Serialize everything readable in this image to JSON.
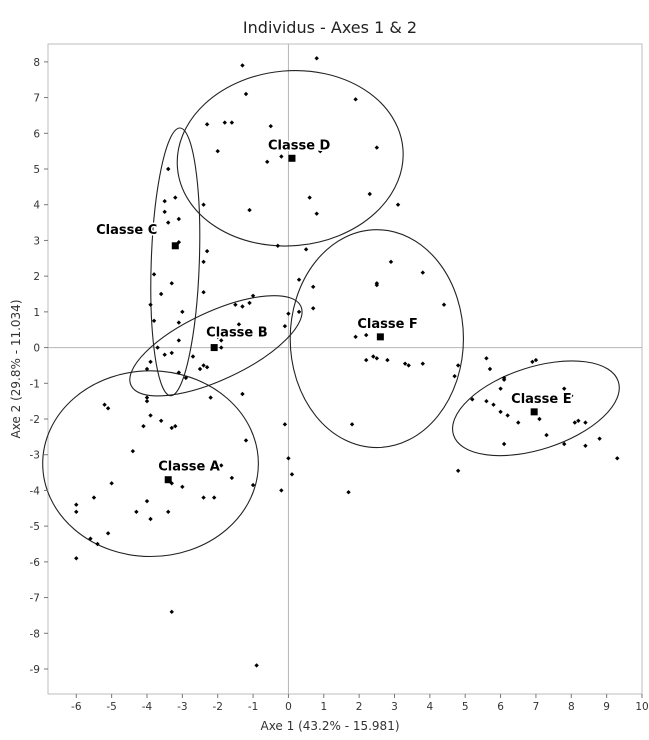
{
  "chart_data": {
    "type": "scatter",
    "title": "Individus - Axes 1 & 2",
    "xlabel": "Axe 1 (43.2% - 15.981)",
    "ylabel": "Axe 2 (29.8% - 11.034)",
    "xlim": [
      -6.8,
      10
    ],
    "ylim": [
      -9.7,
      8.5
    ],
    "x_ticks": [
      "-6",
      "-5",
      "-4",
      "-3",
      "-2",
      "-1",
      "0",
      "1",
      "2",
      "3",
      "4",
      "5",
      "6",
      "7",
      "8",
      "9",
      "10"
    ],
    "y_ticks": [
      "-9",
      "-8",
      "-7",
      "-6",
      "-5",
      "-4",
      "-3",
      "-2",
      "-1",
      "0",
      "1",
      "2",
      "3",
      "4",
      "5",
      "6",
      "7",
      "8"
    ],
    "reference_lines": {
      "x": 0,
      "y": 0
    },
    "grid": false,
    "legend": false,
    "points": [
      [
        -1.3,
        7.9
      ],
      [
        0.8,
        8.1
      ],
      [
        -1.2,
        7.1
      ],
      [
        1.9,
        6.95
      ],
      [
        -1.8,
        6.3
      ],
      [
        -2.3,
        6.25
      ],
      [
        -1.6,
        6.3
      ],
      [
        -0.5,
        6.2
      ],
      [
        -2.0,
        5.5
      ],
      [
        0.9,
        5.5
      ],
      [
        2.5,
        5.6
      ],
      [
        -0.2,
        5.35
      ],
      [
        -0.6,
        5.2
      ],
      [
        2.3,
        4.3
      ],
      [
        0.6,
        4.2
      ],
      [
        3.1,
        4.0
      ],
      [
        0.8,
        3.75
      ],
      [
        -1.1,
        3.85
      ],
      [
        -2.4,
        4.0
      ],
      [
        0.5,
        2.75
      ],
      [
        -0.3,
        2.85
      ],
      [
        -3.4,
        5.0
      ],
      [
        -3.5,
        4.1
      ],
      [
        -3.5,
        3.8
      ],
      [
        -3.4,
        3.5
      ],
      [
        -3.1,
        3.6
      ],
      [
        -3.2,
        4.2
      ],
      [
        -3.1,
        2.95
      ],
      [
        -2.3,
        2.7
      ],
      [
        -2.4,
        2.4
      ],
      [
        -3.8,
        2.05
      ],
      [
        -3.3,
        1.8
      ],
      [
        -3.6,
        1.5
      ],
      [
        -3.9,
        1.2
      ],
      [
        -2.4,
        1.55
      ],
      [
        -3.8,
        0.75
      ],
      [
        -3.0,
        1.0
      ],
      [
        -3.1,
        0.7
      ],
      [
        -3.1,
        0.2
      ],
      [
        -3.7,
        0.0
      ],
      [
        -3.5,
        -0.2
      ],
      [
        -3.3,
        -0.15
      ],
      [
        -2.9,
        -0.85
      ],
      [
        -3.1,
        -0.7
      ],
      [
        -2.7,
        -0.25
      ],
      [
        -2.4,
        -0.5
      ],
      [
        -2.5,
        -0.6
      ],
      [
        -2.3,
        -0.55
      ],
      [
        -3.9,
        -0.4
      ],
      [
        -4.0,
        -0.6
      ],
      [
        -4.0,
        -1.4
      ],
      [
        -4.0,
        -1.5
      ],
      [
        -3.9,
        -1.9
      ],
      [
        -4.1,
        -2.2
      ],
      [
        -3.6,
        -2.05
      ],
      [
        -2.2,
        -1.4
      ],
      [
        -1.3,
        -1.3
      ],
      [
        -1.6,
        0.5
      ],
      [
        -1.4,
        0.65
      ],
      [
        -1.3,
        1.15
      ],
      [
        -1.1,
        1.25
      ],
      [
        -1.0,
        1.45
      ],
      [
        -1.5,
        1.2
      ],
      [
        -1.9,
        0.2
      ],
      [
        -2.0,
        0.3
      ],
      [
        -1.9,
        0.0
      ],
      [
        -0.1,
        0.6
      ],
      [
        0.0,
        0.95
      ],
      [
        0.3,
        1.0
      ],
      [
        0.3,
        1.9
      ],
      [
        0.7,
        1.7
      ],
      [
        0.7,
        1.1
      ],
      [
        -5.1,
        -1.7
      ],
      [
        -5.2,
        -1.6
      ],
      [
        -4.4,
        -2.9
      ],
      [
        -3.3,
        -2.25
      ],
      [
        -3.2,
        -2.2
      ],
      [
        -0.1,
        -2.15
      ],
      [
        0.0,
        -3.1
      ],
      [
        0.1,
        -3.55
      ],
      [
        -1.2,
        -2.6
      ],
      [
        -1.9,
        -3.3
      ],
      [
        -1.6,
        -3.65
      ],
      [
        -1.0,
        -3.85
      ],
      [
        -0.2,
        -4.0
      ],
      [
        -3.0,
        -3.9
      ],
      [
        -3.3,
        -3.8
      ],
      [
        -4.0,
        -4.3
      ],
      [
        -3.9,
        -4.8
      ],
      [
        -4.3,
        -4.6
      ],
      [
        -3.4,
        -4.6
      ],
      [
        -2.1,
        -4.2
      ],
      [
        -2.4,
        -4.2
      ],
      [
        -5.0,
        -3.8
      ],
      [
        -5.5,
        -4.2
      ],
      [
        -6.0,
        -4.4
      ],
      [
        -6.0,
        -4.6
      ],
      [
        -5.1,
        -5.2
      ],
      [
        -5.6,
        -5.35
      ],
      [
        -5.4,
        -5.5
      ],
      [
        -6.0,
        -5.9
      ],
      [
        -3.3,
        -7.4
      ],
      [
        -0.9,
        -8.9
      ],
      [
        1.7,
        -4.05
      ],
      [
        1.8,
        -2.15
      ],
      [
        1.9,
        0.3
      ],
      [
        2.2,
        0.35
      ],
      [
        2.5,
        1.8
      ],
      [
        2.5,
        1.75
      ],
      [
        2.9,
        2.4
      ],
      [
        3.8,
        2.1
      ],
      [
        4.4,
        1.2
      ],
      [
        2.2,
        -0.35
      ],
      [
        2.5,
        -0.3
      ],
      [
        2.4,
        -0.25
      ],
      [
        2.8,
        -0.35
      ],
      [
        3.3,
        -0.45
      ],
      [
        3.4,
        -0.5
      ],
      [
        3.8,
        -0.45
      ],
      [
        4.7,
        -0.8
      ],
      [
        4.8,
        -0.5
      ],
      [
        4.8,
        -3.45
      ],
      [
        5.2,
        -1.45
      ],
      [
        5.6,
        -0.3
      ],
      [
        5.7,
        -0.6
      ],
      [
        5.6,
        -1.5
      ],
      [
        6.0,
        -1.15
      ],
      [
        6.1,
        -0.9
      ],
      [
        6.1,
        -0.85
      ],
      [
        6.9,
        -0.4
      ],
      [
        7.0,
        -0.35
      ],
      [
        5.8,
        -1.6
      ],
      [
        6.0,
        -1.8
      ],
      [
        6.2,
        -1.9
      ],
      [
        6.5,
        -2.1
      ],
      [
        7.1,
        -2.0
      ],
      [
        7.8,
        -1.15
      ],
      [
        8.0,
        -1.35
      ],
      [
        7.3,
        -2.45
      ],
      [
        7.8,
        -2.7
      ],
      [
        8.1,
        -2.1
      ],
      [
        8.2,
        -2.05
      ],
      [
        8.4,
        -2.1
      ],
      [
        8.4,
        -2.75
      ],
      [
        8.8,
        -2.55
      ],
      [
        9.3,
        -3.1
      ],
      [
        6.1,
        -2.7
      ]
    ],
    "centroids": [
      {
        "label": "Classe A",
        "x": -3.4,
        "y": -3.7
      },
      {
        "label": "Classe B",
        "x": -2.1,
        "y": 0.0
      },
      {
        "label": "Classe C",
        "x": -3.2,
        "y": 2.85
      },
      {
        "label": "Classe D",
        "x": 0.1,
        "y": 5.3
      },
      {
        "label": "Classe E",
        "x": 6.95,
        "y": -1.8
      },
      {
        "label": "Classe F",
        "x": 2.6,
        "y": 0.3
      }
    ]
  }
}
